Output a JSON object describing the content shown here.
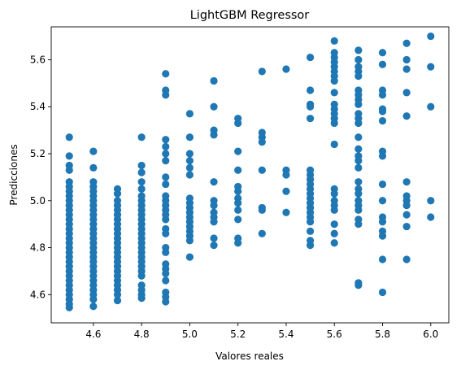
{
  "chart_data": {
    "type": "scatter",
    "title": "LightGBM Regressor",
    "xlabel": "Valores reales",
    "ylabel": "Predicciones",
    "xlim": [
      4.425,
      6.075
    ],
    "ylim": [
      4.48,
      5.74
    ],
    "xticks": [
      "4.6",
      "4.8",
      "5.0",
      "5.2",
      "5.4",
      "5.6",
      "5.8",
      "6.0"
    ],
    "yticks": [
      "4.6",
      "4.8",
      "5.0",
      "5.2",
      "5.4",
      "5.6"
    ],
    "grid": false,
    "marker_color": "#1f77b4",
    "series": [
      {
        "points": [
          [
            4.5,
            5.27
          ],
          [
            4.5,
            5.19
          ],
          [
            4.5,
            5.15
          ],
          [
            4.5,
            5.13
          ],
          [
            4.5,
            5.08
          ],
          [
            4.5,
            5.06
          ],
          [
            4.5,
            5.04
          ],
          [
            4.5,
            5.02
          ],
          [
            4.5,
            5.0
          ],
          [
            4.5,
            4.98
          ],
          [
            4.5,
            4.96
          ],
          [
            4.5,
            4.94
          ],
          [
            4.5,
            4.92
          ],
          [
            4.5,
            4.9
          ],
          [
            4.5,
            4.88
          ],
          [
            4.5,
            4.86
          ],
          [
            4.5,
            4.84
          ],
          [
            4.5,
            4.82
          ],
          [
            4.5,
            4.8
          ],
          [
            4.5,
            4.78
          ],
          [
            4.5,
            4.76
          ],
          [
            4.5,
            4.74
          ],
          [
            4.5,
            4.72
          ],
          [
            4.5,
            4.7
          ],
          [
            4.5,
            4.68
          ],
          [
            4.5,
            4.66
          ],
          [
            4.5,
            4.64
          ],
          [
            4.5,
            4.62
          ],
          [
            4.5,
            4.6
          ],
          [
            4.5,
            4.58
          ],
          [
            4.5,
            4.56
          ],
          [
            4.5,
            4.545
          ],
          [
            4.6,
            5.21
          ],
          [
            4.6,
            5.14
          ],
          [
            4.6,
            5.08
          ],
          [
            4.6,
            5.06
          ],
          [
            4.6,
            5.04
          ],
          [
            4.6,
            5.02
          ],
          [
            4.6,
            5.0
          ],
          [
            4.6,
            4.98
          ],
          [
            4.6,
            4.96
          ],
          [
            4.6,
            4.94
          ],
          [
            4.6,
            4.92
          ],
          [
            4.6,
            4.9
          ],
          [
            4.6,
            4.88
          ],
          [
            4.6,
            4.86
          ],
          [
            4.6,
            4.84
          ],
          [
            4.6,
            4.82
          ],
          [
            4.6,
            4.8
          ],
          [
            4.6,
            4.78
          ],
          [
            4.6,
            4.76
          ],
          [
            4.6,
            4.74
          ],
          [
            4.6,
            4.72
          ],
          [
            4.6,
            4.7
          ],
          [
            4.6,
            4.68
          ],
          [
            4.6,
            4.66
          ],
          [
            4.6,
            4.64
          ],
          [
            4.6,
            4.62
          ],
          [
            4.6,
            4.6
          ],
          [
            4.6,
            4.58
          ],
          [
            4.6,
            4.55
          ],
          [
            4.7,
            5.05
          ],
          [
            4.7,
            5.03
          ],
          [
            4.7,
            5.0
          ],
          [
            4.7,
            4.98
          ],
          [
            4.7,
            4.96
          ],
          [
            4.7,
            4.94
          ],
          [
            4.7,
            4.92
          ],
          [
            4.7,
            4.9
          ],
          [
            4.7,
            4.88
          ],
          [
            4.7,
            4.86
          ],
          [
            4.7,
            4.84
          ],
          [
            4.7,
            4.82
          ],
          [
            4.7,
            4.8
          ],
          [
            4.7,
            4.78
          ],
          [
            4.7,
            4.76
          ],
          [
            4.7,
            4.74
          ],
          [
            4.7,
            4.72
          ],
          [
            4.7,
            4.7
          ],
          [
            4.7,
            4.68
          ],
          [
            4.7,
            4.66
          ],
          [
            4.7,
            4.64
          ],
          [
            4.7,
            4.62
          ],
          [
            4.7,
            4.6
          ],
          [
            4.7,
            4.575
          ],
          [
            4.8,
            5.27
          ],
          [
            4.8,
            5.15
          ],
          [
            4.8,
            5.12
          ],
          [
            4.8,
            5.08
          ],
          [
            4.8,
            5.05
          ],
          [
            4.8,
            5.02
          ],
          [
            4.8,
            5.0
          ],
          [
            4.8,
            4.98
          ],
          [
            4.8,
            4.96
          ],
          [
            4.8,
            4.94
          ],
          [
            4.8,
            4.92
          ],
          [
            4.8,
            4.9
          ],
          [
            4.8,
            4.88
          ],
          [
            4.8,
            4.86
          ],
          [
            4.8,
            4.84
          ],
          [
            4.8,
            4.82
          ],
          [
            4.8,
            4.8
          ],
          [
            4.8,
            4.78
          ],
          [
            4.8,
            4.76
          ],
          [
            4.8,
            4.74
          ],
          [
            4.8,
            4.72
          ],
          [
            4.8,
            4.7
          ],
          [
            4.8,
            4.68
          ],
          [
            4.8,
            4.64
          ],
          [
            4.8,
            4.62
          ],
          [
            4.8,
            4.6
          ],
          [
            4.8,
            4.585
          ],
          [
            4.9,
            5.54
          ],
          [
            4.9,
            5.47
          ],
          [
            4.9,
            5.45
          ],
          [
            4.9,
            5.26
          ],
          [
            4.9,
            5.23
          ],
          [
            4.9,
            5.2
          ],
          [
            4.9,
            5.17
          ],
          [
            4.9,
            5.1
          ],
          [
            4.9,
            5.07
          ],
          [
            4.9,
            5.02
          ],
          [
            4.9,
            5.0
          ],
          [
            4.9,
            4.98
          ],
          [
            4.9,
            4.96
          ],
          [
            4.9,
            4.94
          ],
          [
            4.9,
            4.92
          ],
          [
            4.9,
            4.88
          ],
          [
            4.9,
            4.86
          ],
          [
            4.9,
            4.8
          ],
          [
            4.9,
            4.78
          ],
          [
            4.9,
            4.73
          ],
          [
            4.9,
            4.71
          ],
          [
            4.9,
            4.69
          ],
          [
            4.9,
            4.66
          ],
          [
            4.9,
            4.61
          ],
          [
            4.9,
            4.59
          ],
          [
            4.9,
            4.57
          ],
          [
            5.0,
            5.37
          ],
          [
            5.0,
            5.27
          ],
          [
            5.0,
            5.2
          ],
          [
            5.0,
            5.17
          ],
          [
            5.0,
            5.14
          ],
          [
            5.0,
            5.11
          ],
          [
            5.0,
            5.01
          ],
          [
            5.0,
            4.99
          ],
          [
            5.0,
            4.97
          ],
          [
            5.0,
            4.95
          ],
          [
            5.0,
            4.93
          ],
          [
            5.0,
            4.91
          ],
          [
            5.0,
            4.89
          ],
          [
            5.0,
            4.87
          ],
          [
            5.0,
            4.85
          ],
          [
            5.0,
            4.83
          ],
          [
            5.0,
            4.76
          ],
          [
            5.1,
            5.51
          ],
          [
            5.1,
            5.4
          ],
          [
            5.1,
            5.3
          ],
          [
            5.1,
            5.28
          ],
          [
            5.1,
            5.08
          ],
          [
            5.1,
            5.0
          ],
          [
            5.1,
            4.98
          ],
          [
            5.1,
            4.95
          ],
          [
            5.1,
            4.93
          ],
          [
            5.1,
            4.91
          ],
          [
            5.1,
            4.84
          ],
          [
            5.1,
            4.81
          ],
          [
            5.2,
            5.35
          ],
          [
            5.2,
            5.33
          ],
          [
            5.2,
            5.21
          ],
          [
            5.2,
            5.13
          ],
          [
            5.2,
            5.06
          ],
          [
            5.2,
            5.04
          ],
          [
            5.2,
            5.01
          ],
          [
            5.2,
            4.99
          ],
          [
            5.2,
            4.96
          ],
          [
            5.2,
            4.92
          ],
          [
            5.2,
            4.84
          ],
          [
            5.2,
            4.82
          ],
          [
            5.3,
            5.55
          ],
          [
            5.3,
            5.29
          ],
          [
            5.3,
            5.27
          ],
          [
            5.3,
            5.25
          ],
          [
            5.3,
            5.13
          ],
          [
            5.3,
            4.97
          ],
          [
            5.3,
            4.96
          ],
          [
            5.3,
            4.86
          ],
          [
            5.4,
            5.56
          ],
          [
            5.4,
            5.13
          ],
          [
            5.4,
            5.11
          ],
          [
            5.4,
            5.04
          ],
          [
            5.4,
            4.95
          ],
          [
            5.5,
            5.61
          ],
          [
            5.5,
            5.47
          ],
          [
            5.5,
            5.41
          ],
          [
            5.5,
            5.4
          ],
          [
            5.5,
            5.35
          ],
          [
            5.5,
            5.13
          ],
          [
            5.5,
            5.11
          ],
          [
            5.5,
            5.09
          ],
          [
            5.5,
            5.07
          ],
          [
            5.5,
            5.05
          ],
          [
            5.5,
            5.03
          ],
          [
            5.5,
            5.01
          ],
          [
            5.5,
            4.99
          ],
          [
            5.5,
            4.97
          ],
          [
            5.5,
            4.95
          ],
          [
            5.5,
            4.93
          ],
          [
            5.5,
            4.91
          ],
          [
            5.5,
            4.87
          ],
          [
            5.5,
            4.83
          ],
          [
            5.5,
            4.81
          ],
          [
            5.6,
            5.68
          ],
          [
            5.6,
            5.63
          ],
          [
            5.6,
            5.61
          ],
          [
            5.6,
            5.59
          ],
          [
            5.6,
            5.57
          ],
          [
            5.6,
            5.55
          ],
          [
            5.6,
            5.53
          ],
          [
            5.6,
            5.51
          ],
          [
            5.6,
            5.46
          ],
          [
            5.6,
            5.41
          ],
          [
            5.6,
            5.39
          ],
          [
            5.6,
            5.37
          ],
          [
            5.6,
            5.35
          ],
          [
            5.6,
            5.33
          ],
          [
            5.6,
            5.24
          ],
          [
            5.6,
            5.05
          ],
          [
            5.6,
            5.03
          ],
          [
            5.6,
            5.0
          ],
          [
            5.6,
            4.98
          ],
          [
            5.6,
            4.96
          ],
          [
            5.6,
            4.9
          ],
          [
            5.6,
            4.86
          ],
          [
            5.6,
            4.82
          ],
          [
            5.7,
            5.64
          ],
          [
            5.7,
            5.6
          ],
          [
            5.7,
            5.57
          ],
          [
            5.7,
            5.55
          ],
          [
            5.7,
            5.53
          ],
          [
            5.7,
            5.47
          ],
          [
            5.7,
            5.45
          ],
          [
            5.7,
            5.43
          ],
          [
            5.7,
            5.41
          ],
          [
            5.7,
            5.37
          ],
          [
            5.7,
            5.35
          ],
          [
            5.7,
            5.33
          ],
          [
            5.7,
            5.27
          ],
          [
            5.7,
            5.22
          ],
          [
            5.7,
            5.19
          ],
          [
            5.7,
            5.17
          ],
          [
            5.7,
            5.14
          ],
          [
            5.7,
            5.08
          ],
          [
            5.7,
            5.05
          ],
          [
            5.7,
            5.03
          ],
          [
            5.7,
            5.0
          ],
          [
            5.7,
            4.98
          ],
          [
            5.7,
            4.96
          ],
          [
            5.7,
            4.92
          ],
          [
            5.7,
            4.9
          ],
          [
            5.7,
            4.65
          ],
          [
            5.7,
            4.64
          ],
          [
            5.8,
            5.63
          ],
          [
            5.8,
            5.58
          ],
          [
            5.8,
            5.47
          ],
          [
            5.8,
            5.45
          ],
          [
            5.8,
            5.39
          ],
          [
            5.8,
            5.38
          ],
          [
            5.8,
            5.34
          ],
          [
            5.8,
            5.21
          ],
          [
            5.8,
            5.19
          ],
          [
            5.8,
            5.07
          ],
          [
            5.8,
            5.0
          ],
          [
            5.8,
            4.93
          ],
          [
            5.8,
            4.91
          ],
          [
            5.8,
            4.87
          ],
          [
            5.8,
            4.85
          ],
          [
            5.8,
            4.75
          ],
          [
            5.8,
            4.61
          ],
          [
            5.9,
            5.67
          ],
          [
            5.9,
            5.6
          ],
          [
            5.9,
            5.56
          ],
          [
            5.9,
            5.46
          ],
          [
            5.9,
            5.36
          ],
          [
            5.9,
            5.08
          ],
          [
            5.9,
            5.02
          ],
          [
            5.9,
            5.0
          ],
          [
            5.9,
            4.98
          ],
          [
            5.9,
            4.94
          ],
          [
            5.9,
            4.89
          ],
          [
            5.9,
            4.75
          ],
          [
            6.0,
            5.7
          ],
          [
            6.0,
            5.57
          ],
          [
            6.0,
            5.4
          ],
          [
            6.0,
            5.0
          ],
          [
            6.0,
            4.93
          ]
        ]
      }
    ]
  }
}
